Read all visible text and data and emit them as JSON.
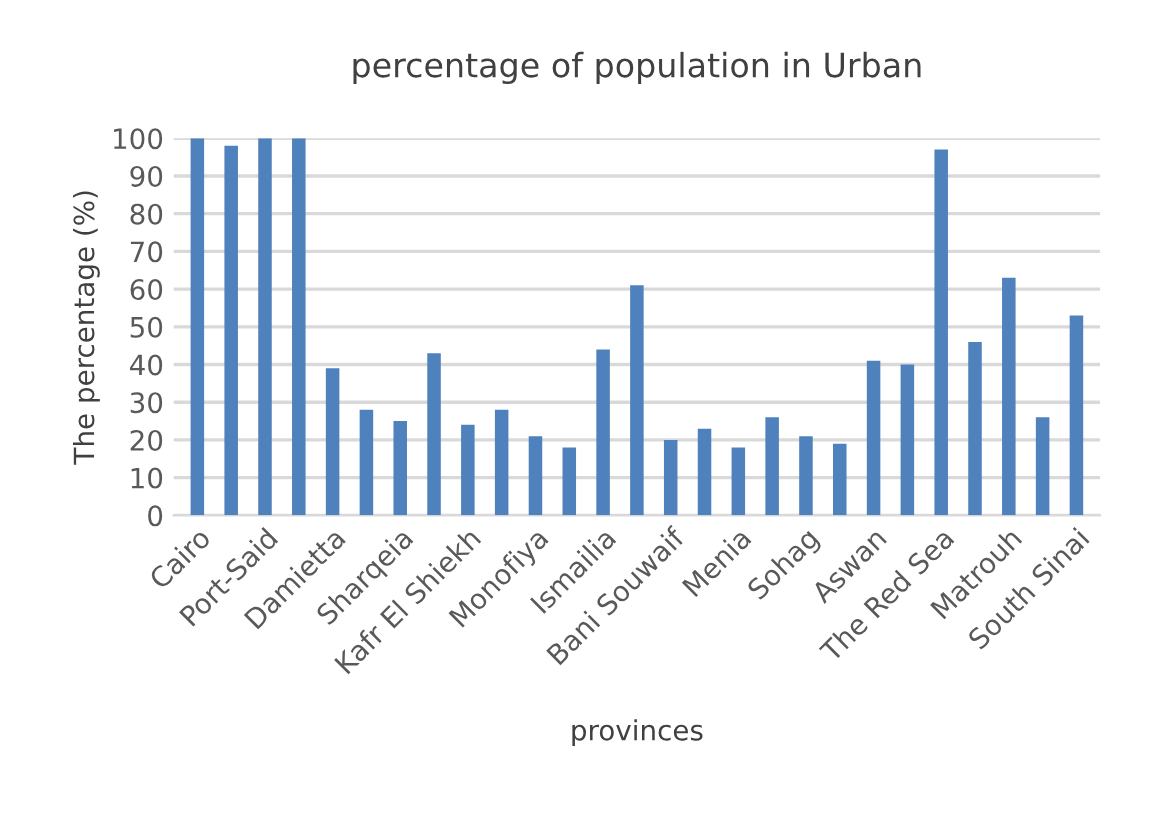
{
  "chart_data": {
    "type": "bar",
    "title": "percentage of population in Urban",
    "xlabel": "provinces",
    "ylabel": "The percentage (%)",
    "categories": [
      "Cairo",
      null,
      "Port-Said",
      null,
      "Damietta",
      null,
      "Sharqeia",
      null,
      "Kafr El Shiekh",
      null,
      "Monofiya",
      null,
      "Ismailia",
      null,
      "Bani Souwaif",
      null,
      "Menia",
      null,
      "Sohag",
      null,
      "Aswan",
      null,
      "The Red Sea",
      null,
      "Matrouh",
      null,
      "South Sinai"
    ],
    "values": [
      100,
      98,
      100,
      100,
      39,
      28,
      25,
      43,
      24,
      28,
      21,
      18,
      44,
      61,
      20,
      23,
      18,
      26,
      21,
      19,
      41,
      40,
      97,
      46,
      63,
      26,
      53
    ],
    "color": "#4f81bd",
    "ylim": [
      0,
      100
    ],
    "yticks": [
      0,
      10,
      20,
      30,
      40,
      50,
      60,
      70,
      80,
      90,
      100
    ],
    "grid": "y"
  }
}
